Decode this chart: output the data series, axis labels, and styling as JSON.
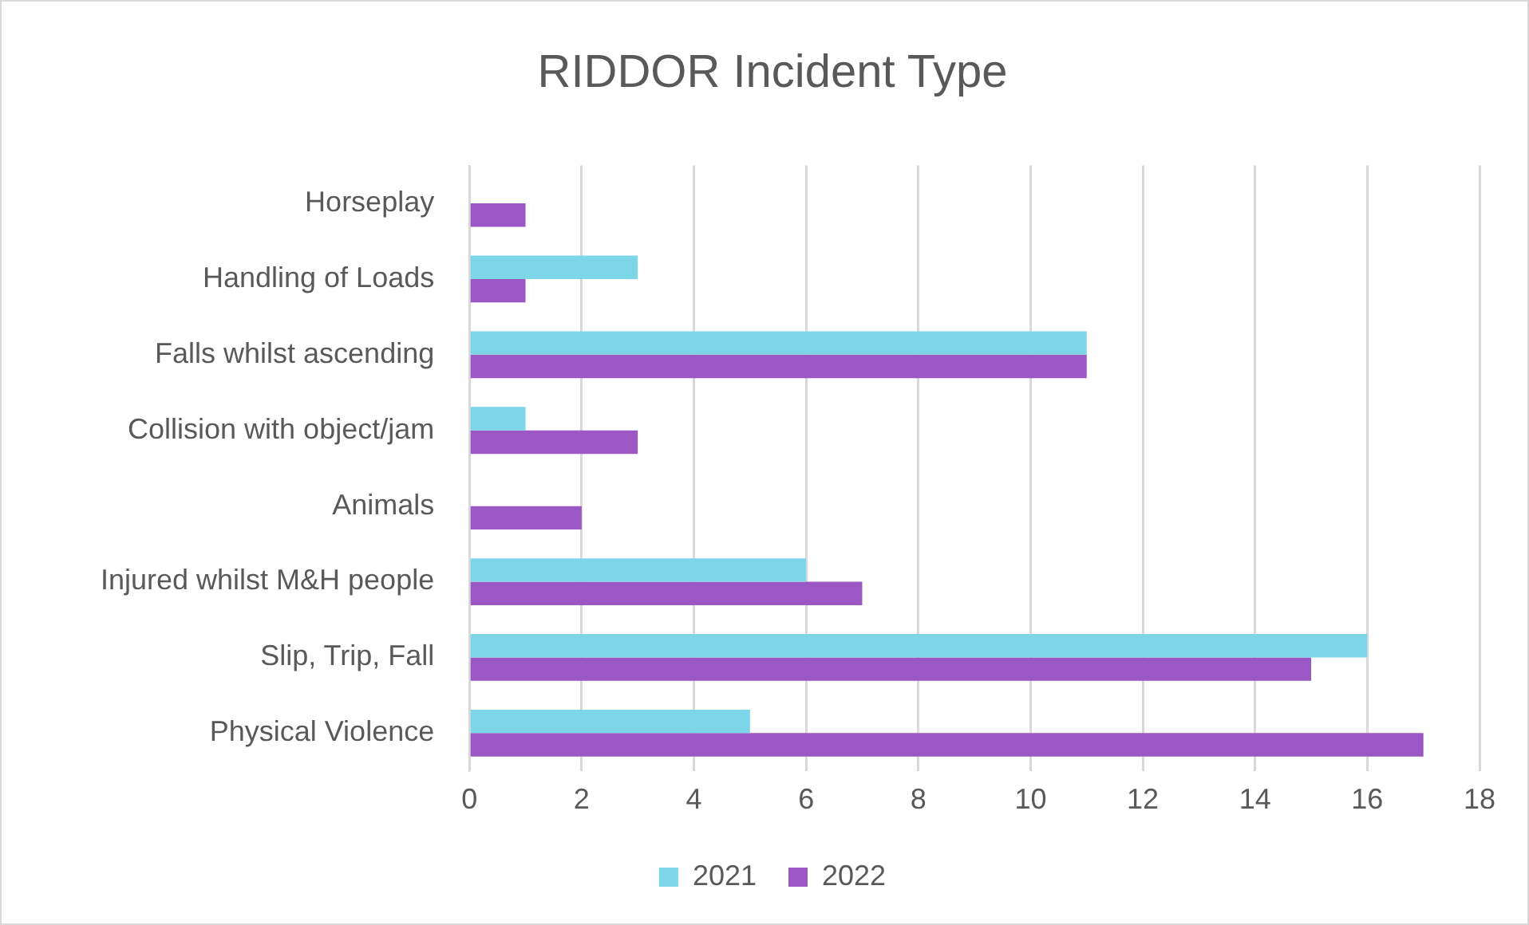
{
  "chart_data": {
    "type": "bar",
    "orientation": "horizontal",
    "title": "RIDDOR Incident Type",
    "categories": [
      "Horseplay",
      "Handling of Loads",
      "Falls whilst ascending",
      "Collision with object/jam",
      "Animals",
      "Injured whilst M&H people",
      "Slip, Trip, Fall",
      "Physical Violence"
    ],
    "series": [
      {
        "name": "2021",
        "color": "#7dd6e8",
        "values": [
          0,
          3,
          11,
          1,
          0,
          6,
          16,
          5
        ]
      },
      {
        "name": "2022",
        "color": "#9b57c4",
        "values": [
          1,
          1,
          11,
          3,
          2,
          7,
          15,
          17
        ]
      }
    ],
    "xlim": [
      0,
      18
    ],
    "xticks": [
      0,
      2,
      4,
      6,
      8,
      10,
      12,
      14,
      16,
      18
    ],
    "grid": "x",
    "legend": "bottom"
  }
}
